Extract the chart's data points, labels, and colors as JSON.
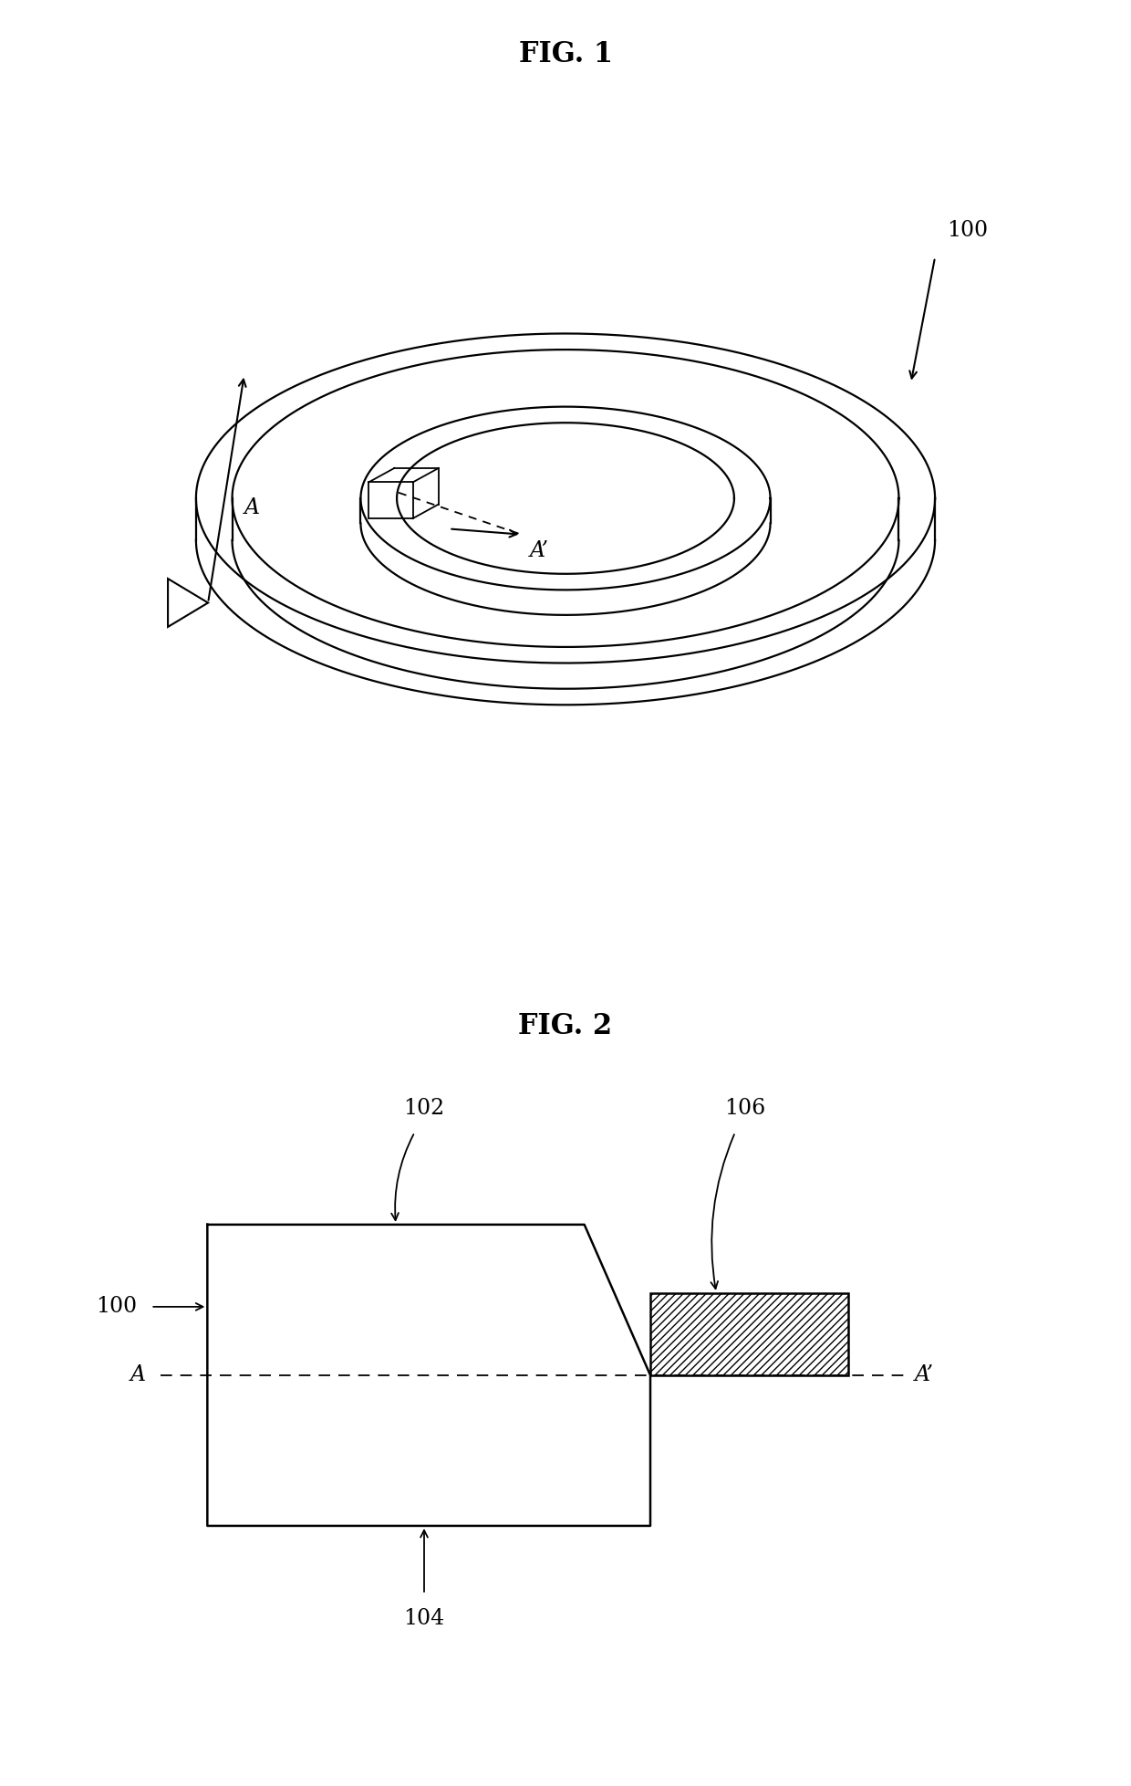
{
  "fig1_title": "FIG. 1",
  "fig2_title": "FIG. 2",
  "bg_color": "#ffffff",
  "line_color": "#000000",
  "fig1_label_100": "100",
  "fig1_label_A": "A",
  "fig1_label_Aprime": "A’",
  "fig2_label_100": "100",
  "fig2_label_102": "102",
  "fig2_label_104": "104",
  "fig2_label_106": "106",
  "fig2_label_A": "A",
  "fig2_label_Aprime": "A’",
  "title_fontsize": 22,
  "label_fontsize": 17
}
